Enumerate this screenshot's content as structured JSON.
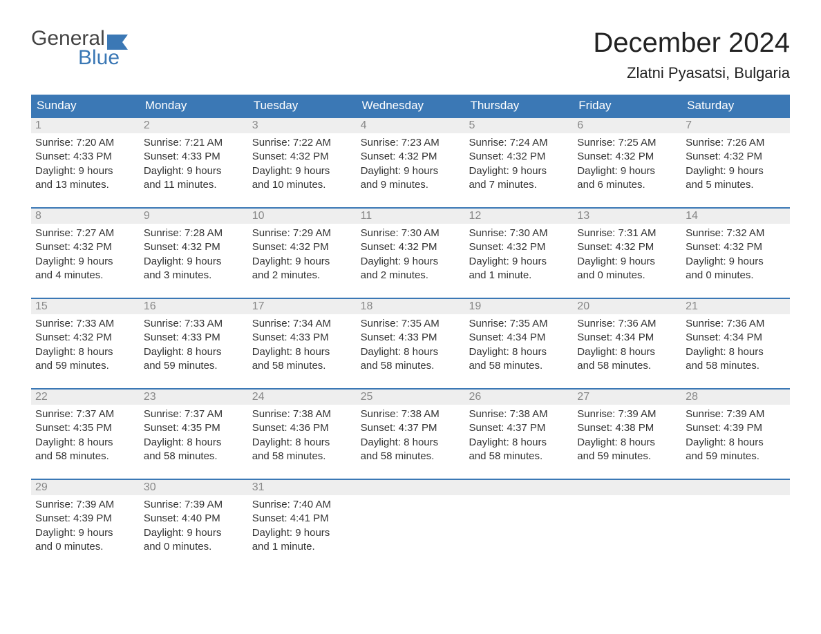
{
  "logo": {
    "text_general": "General",
    "text_blue": "Blue",
    "flag_color": "#3b78b5"
  },
  "header": {
    "month_title": "December 2024",
    "location": "Zlatni Pyasatsi, Bulgaria"
  },
  "colors": {
    "header_bar": "#3b78b5",
    "header_text": "#ffffff",
    "day_number_bg": "#eeeeee",
    "day_number_text": "#888888",
    "body_text": "#333333",
    "week_border": "#3b78b5",
    "background": "#ffffff"
  },
  "typography": {
    "month_title_fontsize": 40,
    "location_fontsize": 22,
    "weekday_fontsize": 17,
    "day_number_fontsize": 16,
    "day_content_fontsize": 15
  },
  "weekdays": [
    "Sunday",
    "Monday",
    "Tuesday",
    "Wednesday",
    "Thursday",
    "Friday",
    "Saturday"
  ],
  "weeks": [
    [
      {
        "num": "1",
        "sunrise": "Sunrise: 7:20 AM",
        "sunset": "Sunset: 4:33 PM",
        "daylight1": "Daylight: 9 hours",
        "daylight2": "and 13 minutes."
      },
      {
        "num": "2",
        "sunrise": "Sunrise: 7:21 AM",
        "sunset": "Sunset: 4:33 PM",
        "daylight1": "Daylight: 9 hours",
        "daylight2": "and 11 minutes."
      },
      {
        "num": "3",
        "sunrise": "Sunrise: 7:22 AM",
        "sunset": "Sunset: 4:32 PM",
        "daylight1": "Daylight: 9 hours",
        "daylight2": "and 10 minutes."
      },
      {
        "num": "4",
        "sunrise": "Sunrise: 7:23 AM",
        "sunset": "Sunset: 4:32 PM",
        "daylight1": "Daylight: 9 hours",
        "daylight2": "and 9 minutes."
      },
      {
        "num": "5",
        "sunrise": "Sunrise: 7:24 AM",
        "sunset": "Sunset: 4:32 PM",
        "daylight1": "Daylight: 9 hours",
        "daylight2": "and 7 minutes."
      },
      {
        "num": "6",
        "sunrise": "Sunrise: 7:25 AM",
        "sunset": "Sunset: 4:32 PM",
        "daylight1": "Daylight: 9 hours",
        "daylight2": "and 6 minutes."
      },
      {
        "num": "7",
        "sunrise": "Sunrise: 7:26 AM",
        "sunset": "Sunset: 4:32 PM",
        "daylight1": "Daylight: 9 hours",
        "daylight2": "and 5 minutes."
      }
    ],
    [
      {
        "num": "8",
        "sunrise": "Sunrise: 7:27 AM",
        "sunset": "Sunset: 4:32 PM",
        "daylight1": "Daylight: 9 hours",
        "daylight2": "and 4 minutes."
      },
      {
        "num": "9",
        "sunrise": "Sunrise: 7:28 AM",
        "sunset": "Sunset: 4:32 PM",
        "daylight1": "Daylight: 9 hours",
        "daylight2": "and 3 minutes."
      },
      {
        "num": "10",
        "sunrise": "Sunrise: 7:29 AM",
        "sunset": "Sunset: 4:32 PM",
        "daylight1": "Daylight: 9 hours",
        "daylight2": "and 2 minutes."
      },
      {
        "num": "11",
        "sunrise": "Sunrise: 7:30 AM",
        "sunset": "Sunset: 4:32 PM",
        "daylight1": "Daylight: 9 hours",
        "daylight2": "and 2 minutes."
      },
      {
        "num": "12",
        "sunrise": "Sunrise: 7:30 AM",
        "sunset": "Sunset: 4:32 PM",
        "daylight1": "Daylight: 9 hours",
        "daylight2": "and 1 minute."
      },
      {
        "num": "13",
        "sunrise": "Sunrise: 7:31 AM",
        "sunset": "Sunset: 4:32 PM",
        "daylight1": "Daylight: 9 hours",
        "daylight2": "and 0 minutes."
      },
      {
        "num": "14",
        "sunrise": "Sunrise: 7:32 AM",
        "sunset": "Sunset: 4:32 PM",
        "daylight1": "Daylight: 9 hours",
        "daylight2": "and 0 minutes."
      }
    ],
    [
      {
        "num": "15",
        "sunrise": "Sunrise: 7:33 AM",
        "sunset": "Sunset: 4:32 PM",
        "daylight1": "Daylight: 8 hours",
        "daylight2": "and 59 minutes."
      },
      {
        "num": "16",
        "sunrise": "Sunrise: 7:33 AM",
        "sunset": "Sunset: 4:33 PM",
        "daylight1": "Daylight: 8 hours",
        "daylight2": "and 59 minutes."
      },
      {
        "num": "17",
        "sunrise": "Sunrise: 7:34 AM",
        "sunset": "Sunset: 4:33 PM",
        "daylight1": "Daylight: 8 hours",
        "daylight2": "and 58 minutes."
      },
      {
        "num": "18",
        "sunrise": "Sunrise: 7:35 AM",
        "sunset": "Sunset: 4:33 PM",
        "daylight1": "Daylight: 8 hours",
        "daylight2": "and 58 minutes."
      },
      {
        "num": "19",
        "sunrise": "Sunrise: 7:35 AM",
        "sunset": "Sunset: 4:34 PM",
        "daylight1": "Daylight: 8 hours",
        "daylight2": "and 58 minutes."
      },
      {
        "num": "20",
        "sunrise": "Sunrise: 7:36 AM",
        "sunset": "Sunset: 4:34 PM",
        "daylight1": "Daylight: 8 hours",
        "daylight2": "and 58 minutes."
      },
      {
        "num": "21",
        "sunrise": "Sunrise: 7:36 AM",
        "sunset": "Sunset: 4:34 PM",
        "daylight1": "Daylight: 8 hours",
        "daylight2": "and 58 minutes."
      }
    ],
    [
      {
        "num": "22",
        "sunrise": "Sunrise: 7:37 AM",
        "sunset": "Sunset: 4:35 PM",
        "daylight1": "Daylight: 8 hours",
        "daylight2": "and 58 minutes."
      },
      {
        "num": "23",
        "sunrise": "Sunrise: 7:37 AM",
        "sunset": "Sunset: 4:35 PM",
        "daylight1": "Daylight: 8 hours",
        "daylight2": "and 58 minutes."
      },
      {
        "num": "24",
        "sunrise": "Sunrise: 7:38 AM",
        "sunset": "Sunset: 4:36 PM",
        "daylight1": "Daylight: 8 hours",
        "daylight2": "and 58 minutes."
      },
      {
        "num": "25",
        "sunrise": "Sunrise: 7:38 AM",
        "sunset": "Sunset: 4:37 PM",
        "daylight1": "Daylight: 8 hours",
        "daylight2": "and 58 minutes."
      },
      {
        "num": "26",
        "sunrise": "Sunrise: 7:38 AM",
        "sunset": "Sunset: 4:37 PM",
        "daylight1": "Daylight: 8 hours",
        "daylight2": "and 58 minutes."
      },
      {
        "num": "27",
        "sunrise": "Sunrise: 7:39 AM",
        "sunset": "Sunset: 4:38 PM",
        "daylight1": "Daylight: 8 hours",
        "daylight2": "and 59 minutes."
      },
      {
        "num": "28",
        "sunrise": "Sunrise: 7:39 AM",
        "sunset": "Sunset: 4:39 PM",
        "daylight1": "Daylight: 8 hours",
        "daylight2": "and 59 minutes."
      }
    ],
    [
      {
        "num": "29",
        "sunrise": "Sunrise: 7:39 AM",
        "sunset": "Sunset: 4:39 PM",
        "daylight1": "Daylight: 9 hours",
        "daylight2": "and 0 minutes."
      },
      {
        "num": "30",
        "sunrise": "Sunrise: 7:39 AM",
        "sunset": "Sunset: 4:40 PM",
        "daylight1": "Daylight: 9 hours",
        "daylight2": "and 0 minutes."
      },
      {
        "num": "31",
        "sunrise": "Sunrise: 7:40 AM",
        "sunset": "Sunset: 4:41 PM",
        "daylight1": "Daylight: 9 hours",
        "daylight2": "and 1 minute."
      },
      null,
      null,
      null,
      null
    ]
  ]
}
